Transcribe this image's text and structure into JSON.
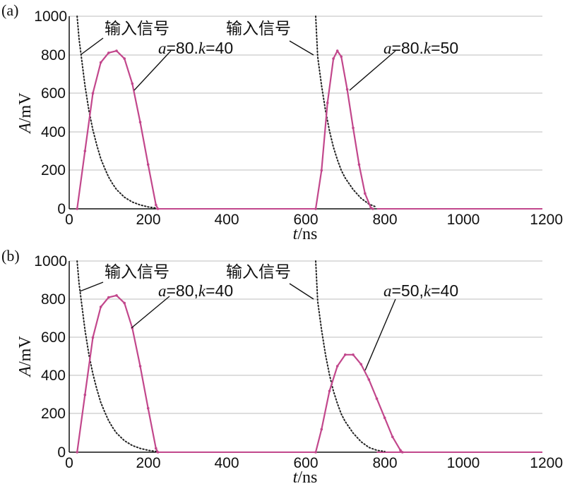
{
  "chart_data": [
    {
      "type": "line",
      "panel_label": "(a)",
      "xlabel_italic": "t",
      "xlabel_unit": "/ns",
      "ylabel_italic": "A",
      "ylabel_unit": "/mV",
      "xlim": [
        0,
        1200
      ],
      "ylim": [
        0,
        1000
      ],
      "x_ticks": [
        "0",
        "200",
        "400",
        "600",
        "800",
        "1000",
        "1200"
      ],
      "y_ticks": [
        "0",
        "200",
        "400",
        "600",
        "800",
        "1000"
      ],
      "grid": true,
      "series": [
        {
          "name": "输入信号",
          "color": "#222222",
          "style": "dotted",
          "x": [
            20,
            25,
            30,
            40,
            50,
            60,
            70,
            80,
            90,
            100,
            110,
            120,
            140,
            160,
            180,
            200,
            220,
            625,
            630,
            640,
            650,
            660,
            670,
            680,
            690,
            700,
            720,
            740,
            760,
            780
          ],
          "y": [
            1000,
            880,
            800,
            640,
            510,
            410,
            330,
            260,
            210,
            165,
            130,
            100,
            60,
            35,
            20,
            10,
            4,
            1000,
            790,
            640,
            510,
            405,
            320,
            255,
            200,
            160,
            100,
            55,
            25,
            8
          ]
        },
        {
          "name": "a=80,k=40 (first)",
          "color": "#c2478c",
          "style": "solid",
          "x": [
            20,
            40,
            60,
            80,
            100,
            120,
            140,
            160,
            180,
            200,
            220,
            225
          ],
          "y": [
            0,
            300,
            600,
            760,
            810,
            820,
            780,
            650,
            450,
            230,
            20,
            0
          ]
        },
        {
          "name": "a=80,k=50",
          "color": "#c2478c",
          "style": "solid",
          "x": [
            625,
            640,
            655,
            670,
            680,
            690,
            705,
            720,
            735,
            750,
            765,
            770
          ],
          "y": [
            0,
            200,
            550,
            780,
            820,
            790,
            620,
            420,
            230,
            80,
            5,
            0
          ]
        }
      ],
      "annotations": [
        {
          "text": "输入信号",
          "x": 240,
          "y": 910
        },
        {
          "text": "输入信号",
          "x": 760,
          "y": 910
        },
        {
          "text_italic": "a",
          "text_rest": "=80.",
          "text_italic2": "k",
          "text_rest2": "=40"
        },
        {
          "text_italic": "a",
          "text_rest": "=80.",
          "text_italic2": "k",
          "text_rest2": "=50"
        }
      ]
    },
    {
      "type": "line",
      "panel_label": "(b)",
      "xlabel_italic": "t",
      "xlabel_unit": "/ns",
      "ylabel_italic": "A",
      "ylabel_unit": "/mV",
      "xlim": [
        0,
        1200
      ],
      "ylim": [
        0,
        1000
      ],
      "x_ticks": [
        "0",
        "200",
        "400",
        "600",
        "800",
        "1000",
        "1200"
      ],
      "y_ticks": [
        "0",
        "200",
        "400",
        "600",
        "800",
        "1000"
      ],
      "grid": true,
      "series": [
        {
          "name": "输入信号",
          "color": "#222222",
          "style": "dotted",
          "x": [
            20,
            25,
            30,
            40,
            50,
            60,
            70,
            80,
            90,
            100,
            110,
            120,
            140,
            160,
            180,
            200,
            220,
            625,
            630,
            640,
            650,
            660,
            670,
            680,
            690,
            700,
            720,
            740,
            760,
            780,
            800
          ],
          "y": [
            1000,
            880,
            800,
            640,
            510,
            410,
            330,
            260,
            210,
            165,
            130,
            100,
            60,
            35,
            20,
            10,
            4,
            1000,
            790,
            640,
            510,
            405,
            320,
            255,
            200,
            160,
            100,
            55,
            25,
            10,
            4
          ]
        },
        {
          "name": "a=80,k=40",
          "color": "#c2478c",
          "style": "solid",
          "x": [
            20,
            40,
            60,
            80,
            100,
            120,
            140,
            160,
            180,
            200,
            220,
            225
          ],
          "y": [
            0,
            300,
            600,
            760,
            810,
            820,
            780,
            650,
            450,
            230,
            20,
            0
          ]
        },
        {
          "name": "a=50,k=40",
          "color": "#c2478c",
          "style": "solid",
          "x": [
            625,
            640,
            660,
            680,
            700,
            720,
            740,
            760,
            780,
            800,
            820,
            840,
            845
          ],
          "y": [
            0,
            120,
            320,
            450,
            510,
            510,
            460,
            380,
            280,
            180,
            80,
            10,
            0
          ]
        }
      ],
      "annotations": [
        {
          "text": "输入信号",
          "x": 240,
          "y": 910
        },
        {
          "text": "输入信号",
          "x": 760,
          "y": 910
        },
        {
          "text_italic": "a",
          "text_rest": "=80,",
          "text_italic2": "k",
          "text_rest2": "=40"
        },
        {
          "text_italic": "a",
          "text_rest": "=50,",
          "text_italic2": "k",
          "text_rest2": "=40"
        }
      ]
    }
  ]
}
